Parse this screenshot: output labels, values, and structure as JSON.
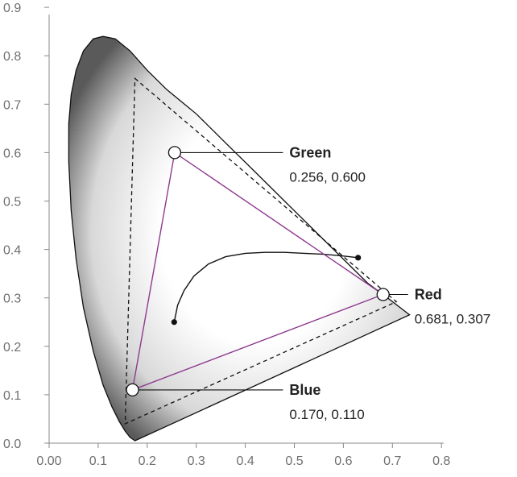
{
  "chart_data": {
    "type": "scatter",
    "xlim": [
      0,
      0.8
    ],
    "ylim": [
      0,
      0.9
    ],
    "x_ticks": [
      "0.00",
      "0.1",
      "0.2",
      "0.3",
      "0.4",
      "0.5",
      "0.6",
      "0.7",
      "0.8"
    ],
    "x_tick_values": [
      0,
      0.1,
      0.2,
      0.3,
      0.4,
      0.5,
      0.6,
      0.7,
      0.8
    ],
    "y_ticks": [
      "0.0",
      "0.1",
      "0.2",
      "0.3",
      "0.4",
      "0.5",
      "0.6",
      "0.7",
      "0.8",
      "0.9"
    ],
    "y_tick_values": [
      0,
      0.1,
      0.2,
      0.3,
      0.4,
      0.5,
      0.6,
      0.7,
      0.8,
      0.9
    ],
    "grid": false,
    "spectral_locus": [
      [
        0.175,
        0.005
      ],
      [
        0.165,
        0.012
      ],
      [
        0.155,
        0.025
      ],
      [
        0.143,
        0.045
      ],
      [
        0.128,
        0.075
      ],
      [
        0.11,
        0.12
      ],
      [
        0.09,
        0.19
      ],
      [
        0.07,
        0.28
      ],
      [
        0.055,
        0.38
      ],
      [
        0.045,
        0.48
      ],
      [
        0.04,
        0.58
      ],
      [
        0.04,
        0.66
      ],
      [
        0.045,
        0.72
      ],
      [
        0.055,
        0.77
      ],
      [
        0.07,
        0.81
      ],
      [
        0.09,
        0.835
      ],
      [
        0.11,
        0.84
      ],
      [
        0.135,
        0.835
      ],
      [
        0.165,
        0.81
      ],
      [
        0.2,
        0.77
      ],
      [
        0.24,
        0.73
      ],
      [
        0.3,
        0.68
      ],
      [
        0.36,
        0.62
      ],
      [
        0.42,
        0.56
      ],
      [
        0.48,
        0.5
      ],
      [
        0.54,
        0.44
      ],
      [
        0.6,
        0.38
      ],
      [
        0.65,
        0.33
      ],
      [
        0.69,
        0.3
      ],
      [
        0.735,
        0.265
      ]
    ],
    "reference_gamut": [
      [
        0.175,
        0.753
      ],
      [
        0.708,
        0.292
      ],
      [
        0.155,
        0.04
      ]
    ],
    "primaries": [
      {
        "name": "Green",
        "x": 0.256,
        "y": 0.6,
        "label": "0.256, 0.600",
        "label_at": [
          0.49,
          0.615
        ]
      },
      {
        "name": "Red",
        "x": 0.681,
        "y": 0.307,
        "label": "0.681, 0.307",
        "label_at": [
          0.745,
          0.315
        ]
      },
      {
        "name": "Blue",
        "x": 0.17,
        "y": 0.11,
        "label": "0.170, 0.110",
        "label_at": [
          0.49,
          0.11
        ]
      }
    ],
    "planckian_locus": [
      [
        0.255,
        0.25
      ],
      [
        0.262,
        0.285
      ],
      [
        0.275,
        0.315
      ],
      [
        0.295,
        0.345
      ],
      [
        0.325,
        0.37
      ],
      [
        0.36,
        0.385
      ],
      [
        0.4,
        0.392
      ],
      [
        0.44,
        0.394
      ],
      [
        0.48,
        0.394
      ],
      [
        0.52,
        0.392
      ],
      [
        0.56,
        0.39
      ],
      [
        0.595,
        0.387
      ],
      [
        0.63,
        0.383
      ]
    ],
    "planckian_endpoints": [
      [
        0.255,
        0.25
      ],
      [
        0.63,
        0.383
      ]
    ]
  },
  "colors": {
    "axis": "#888888",
    "tick_text": "#6f6f6f",
    "locus_outline": "#111111",
    "gradient_dark": "#5a5a5a",
    "gradient_light": "#ffffff",
    "triangle": "#8e3a8e",
    "reference_gamut": "#111111",
    "label_text": "#222222"
  }
}
